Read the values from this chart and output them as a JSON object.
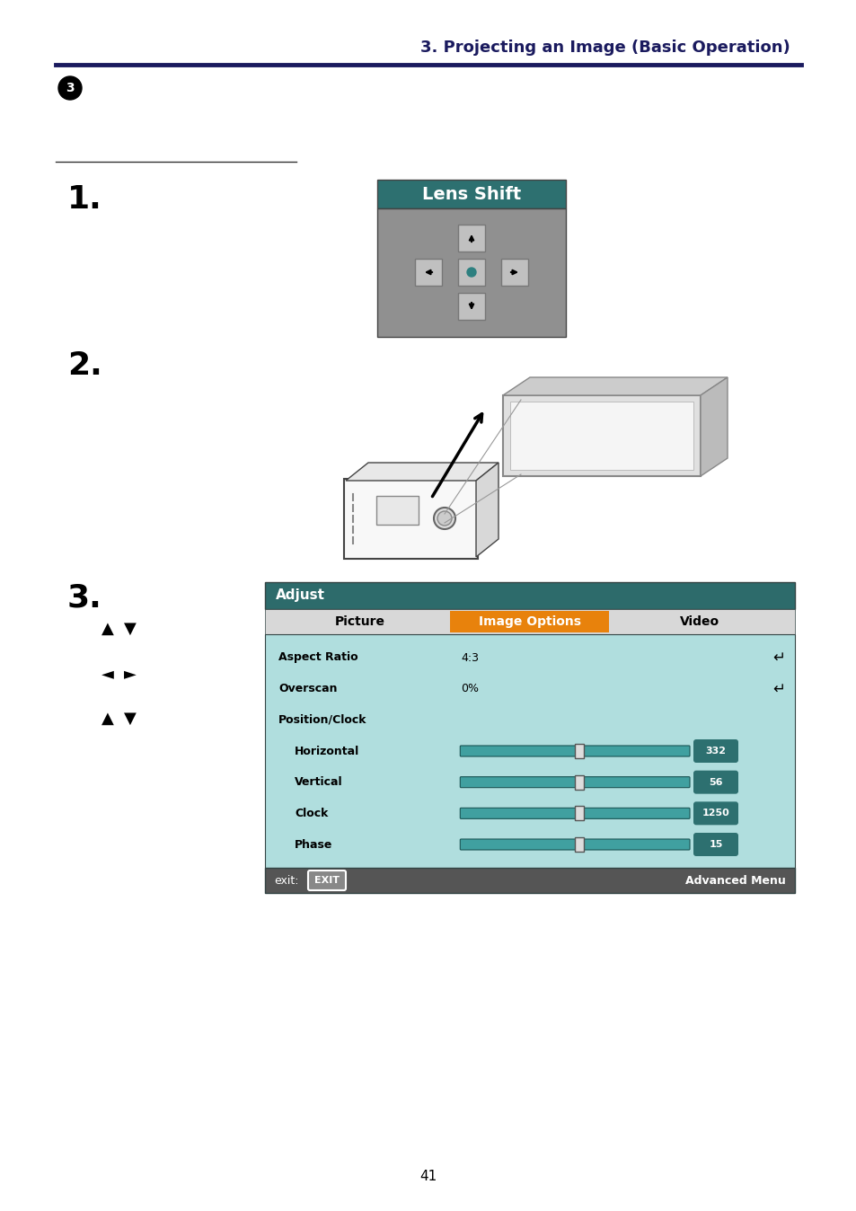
{
  "title": "3. Projecting an Image (Basic Operation)",
  "title_color": "#1a1a5e",
  "title_fontsize": 13,
  "page_number": "41",
  "section_underline_color": "#1a1a5e",
  "lens_shift": {
    "title": "Lens Shift",
    "title_bg": "#2d7070",
    "body_bg": "#909090",
    "button_bg": "#c0c0c0",
    "title_color": "#ffffff"
  },
  "adjust_menu": {
    "header_bg": "#2d6b6b",
    "header_text": "Adjust",
    "tab_picture": "Picture",
    "tab_image_options": "Image Options",
    "tab_image_options_bg": "#e8820c",
    "tab_row_bg": "#d8d8d8",
    "tab_video": "Video",
    "body_bg": "#b0dede",
    "aspect_ratio_label": "Aspect Ratio",
    "aspect_ratio_value": "4:3",
    "overscan_label": "Overscan",
    "overscan_value": "0%",
    "position_clock_label": "Position/Clock",
    "horizontal_label": "Horizontal",
    "horizontal_value": "332",
    "vertical_label": "Vertical",
    "vertical_value": "56",
    "clock_label": "Clock",
    "clock_value": "1250",
    "phase_label": "Phase",
    "phase_value": "15",
    "slider_track_bg": "#40a0a0",
    "slider_handle_bg": "#dddddd",
    "value_bg": "#2d7070",
    "value_color": "#ffffff",
    "footer_bg": "#555555",
    "footer_exit": "exit:",
    "footer_exit_btn": "EXIT",
    "footer_advanced": "Advanced Menu",
    "return_symbol": "↵"
  }
}
